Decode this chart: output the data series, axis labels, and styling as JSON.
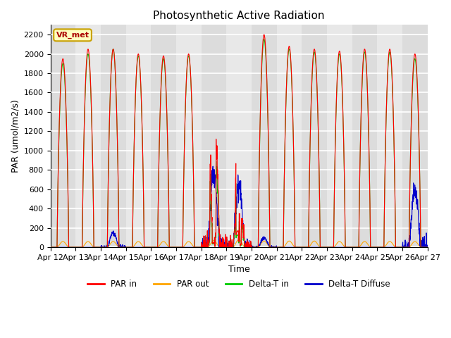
{
  "title": "Photosynthetic Active Radiation",
  "ylabel": "PAR (umol/m2/s)",
  "xlabel": "Time",
  "annotation_text": "VR_met",
  "annotation_bg": "#FFFFC0",
  "annotation_border": "#C8A000",
  "ylim": [
    0,
    2300
  ],
  "legend_labels": [
    "PAR in",
    "PAR out",
    "Delta-T in",
    "Delta-T Diffuse"
  ],
  "legend_colors": [
    "#FF0000",
    "#FFA500",
    "#00CC00",
    "#0000CC"
  ],
  "bg_colors": [
    "#DCDCDC",
    "#E8E8E8"
  ],
  "grid_color": "#FFFFFF",
  "start_day": 12,
  "end_day": 27,
  "n_days": 15,
  "title_fontsize": 11,
  "label_fontsize": 9,
  "tick_fontsize": 8
}
